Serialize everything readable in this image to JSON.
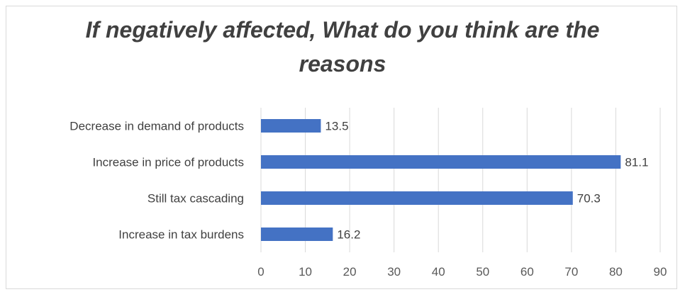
{
  "chart_data": {
    "type": "bar",
    "orientation": "horizontal",
    "title_lines": [
      "If negatively affected, What do you think are the",
      "reasons"
    ],
    "categories": [
      "Decrease in demand of products",
      "Increase in price of products",
      "Still tax cascading",
      "Increase in tax  burdens"
    ],
    "values": [
      13.5,
      81.1,
      70.3,
      16.2
    ],
    "data_labels": [
      "13.5",
      "81.1",
      "70.3",
      "16.2"
    ],
    "xlim": [
      0,
      90
    ],
    "xticks": [
      0,
      10,
      20,
      30,
      40,
      50,
      60,
      70,
      80,
      90
    ],
    "grid": "vertical",
    "legend": "none",
    "bar_color": "#4472C4"
  }
}
